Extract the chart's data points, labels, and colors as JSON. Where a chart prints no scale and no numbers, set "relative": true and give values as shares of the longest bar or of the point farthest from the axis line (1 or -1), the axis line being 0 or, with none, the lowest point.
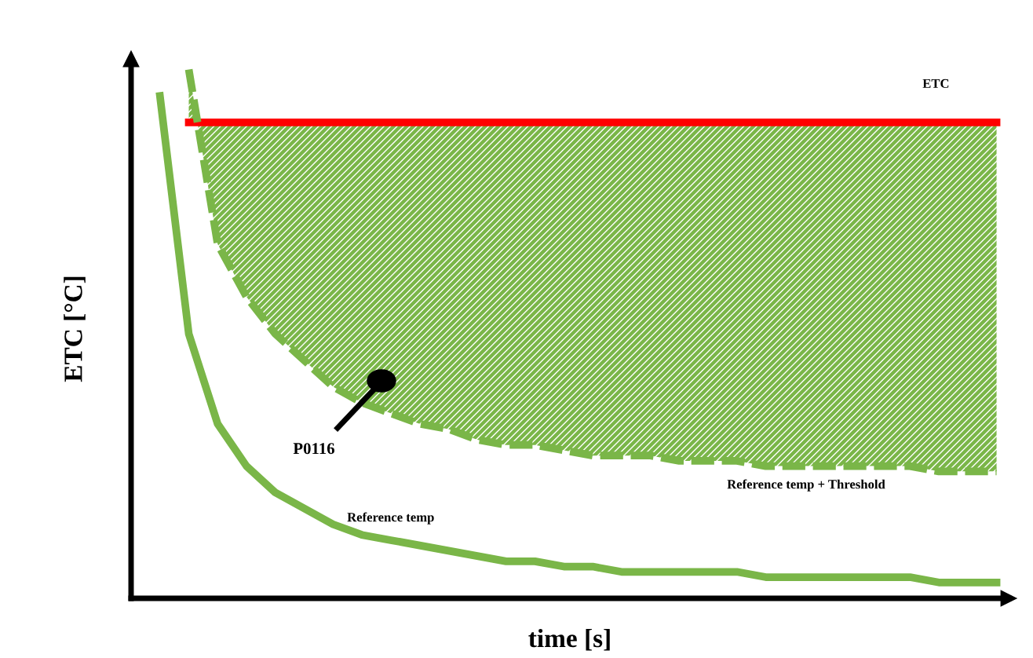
{
  "chart_data": {
    "type": "line",
    "relative": true,
    "xlabel": "time [s]",
    "ylabel": "ETC [°C]",
    "categories": [
      null,
      null,
      null,
      null,
      null,
      null,
      null,
      null,
      null,
      null,
      null,
      null,
      null,
      null,
      null,
      null,
      null,
      null,
      null,
      null,
      null,
      null,
      null,
      null,
      null,
      null,
      null,
      null,
      null,
      null,
      null
    ],
    "series": [
      {
        "name": "ETC",
        "color": "#ff0000",
        "line_style": "solid",
        "values": [
          null,
          null,
          0.9,
          0.9,
          0.9,
          0.9,
          0.9,
          0.9,
          0.9,
          0.9,
          0.9,
          0.9,
          0.9,
          0.9,
          0.9,
          0.9,
          0.9,
          0.9,
          0.9,
          0.9,
          0.9,
          0.9,
          0.9,
          0.9,
          0.9,
          0.9,
          0.9,
          0.9,
          0.9,
          0.9,
          0.9
        ]
      },
      {
        "name": "Reference temp + Threshold",
        "color": "#7ab648",
        "line_style": "dashed",
        "values": [
          null,
          null,
          1.0,
          0.67,
          0.57,
          0.5,
          0.45,
          0.4,
          0.37,
          0.35,
          0.33,
          0.32,
          0.3,
          0.29,
          0.29,
          0.28,
          0.27,
          0.27,
          0.27,
          0.26,
          0.26,
          0.26,
          0.25,
          0.25,
          0.25,
          0.25,
          0.25,
          0.25,
          0.24,
          0.24,
          0.24
        ],
        "lower": [
          null,
          null,
          1.0,
          0.67,
          0.57,
          0.5,
          0.45,
          0.4,
          0.37,
          0.35,
          0.33,
          0.32,
          0.3,
          0.29,
          0.29,
          0.28,
          0.27,
          0.27,
          0.27,
          0.26,
          0.26,
          0.26,
          0.25,
          0.25,
          0.25,
          0.25,
          0.25,
          0.25,
          0.24,
          0.24,
          0.24
        ],
        "upper": [
          null,
          null,
          0.9,
          0.9,
          0.9,
          0.9,
          0.9,
          0.9,
          0.9,
          0.9,
          0.9,
          0.9,
          0.9,
          0.9,
          0.9,
          0.9,
          0.9,
          0.9,
          0.9,
          0.9,
          0.9,
          0.9,
          0.9,
          0.9,
          0.9,
          0.9,
          0.9,
          0.9,
          0.9,
          0.9,
          0.9
        ]
      },
      {
        "name": "Reference temp",
        "color": "#7ab648",
        "line_style": "solid",
        "values": [
          null,
          0.95,
          0.5,
          0.33,
          0.25,
          0.2,
          0.17,
          0.14,
          0.12,
          0.11,
          0.1,
          0.09,
          0.08,
          0.07,
          0.07,
          0.06,
          0.06,
          0.05,
          0.05,
          0.05,
          0.05,
          0.05,
          0.04,
          0.04,
          0.04,
          0.04,
          0.04,
          0.04,
          0.03,
          0.03,
          0.03
        ]
      }
    ],
    "annotations": [
      "P0116"
    ],
    "legend": false
  }
}
